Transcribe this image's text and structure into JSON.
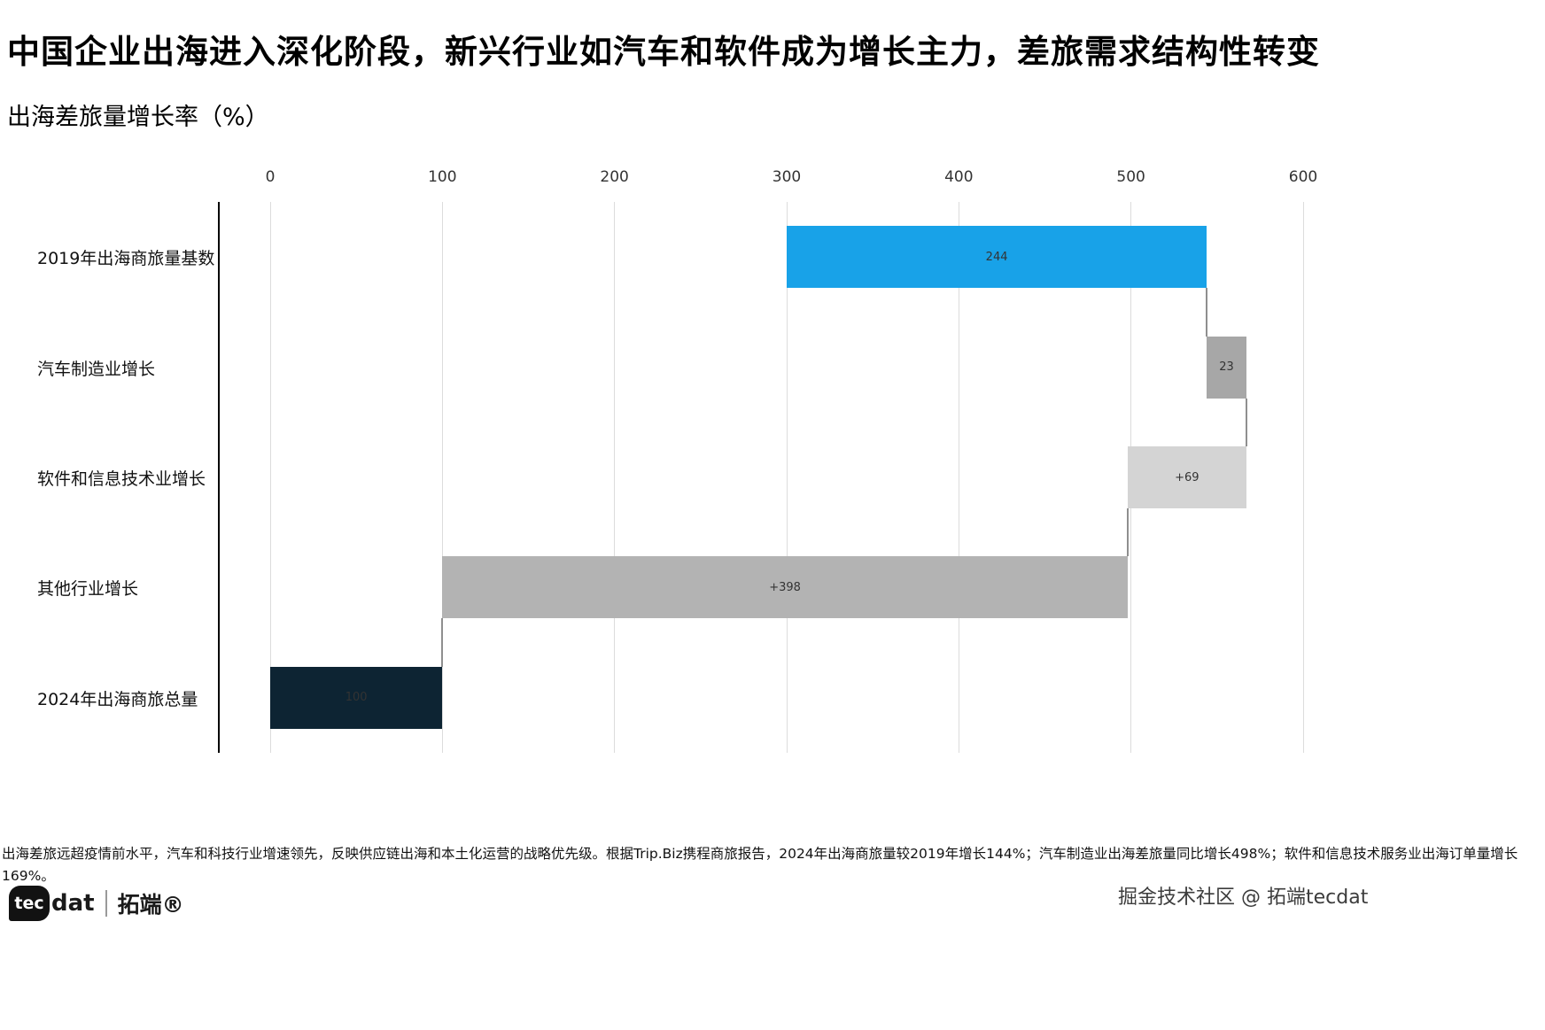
{
  "header": {
    "title": "中国企业出海进入深化阶段，新兴行业如汽车和软件成为增长主力，差旅需求结构性转变",
    "subtitle": "出海差旅量增长率（%）"
  },
  "chart_data": {
    "type": "bar",
    "variant": "horizontal-waterfall",
    "title": "中国企业出海进入深化阶段，新兴行业如汽车和软件成为增长主力，差旅需求结构性转变",
    "subtitle": "出海差旅量增长率（%）",
    "xlabel": "",
    "ylabel": "",
    "xlim": [
      0,
      600
    ],
    "xticks": [
      0,
      100,
      200,
      300,
      400,
      500,
      600
    ],
    "grid": true,
    "legend": "none",
    "categories": [
      "2019年出海商旅量基数",
      "汽车制造业增长",
      "软件和信息技术业增长",
      "其他行业增长",
      "2024年出海商旅总量"
    ],
    "bars": [
      {
        "category": "2019年出海商旅量基数",
        "value": 244,
        "start": 300,
        "end": 544,
        "label": "244",
        "color": "#18a2e8",
        "label_color": "#333333"
      },
      {
        "category": "汽车制造业增长",
        "value": 23,
        "start": 544,
        "end": 567,
        "label": "23",
        "color": "#a7a7a7",
        "label_color": "#333333"
      },
      {
        "category": "软件和信息技术业增长",
        "value": 69,
        "start": 498,
        "end": 567,
        "label": "+69",
        "color": "#d4d4d4",
        "label_color": "#333333"
      },
      {
        "category": "其他行业增长",
        "value": 398,
        "start": 100,
        "end": 498,
        "label": "+398",
        "color": "#b3b3b3",
        "label_color": "#333333"
      },
      {
        "category": "2024年出海商旅总量",
        "value": 100,
        "start": 0,
        "end": 100,
        "label": "100",
        "color": "#0d2433",
        "label_color": "#333333"
      }
    ],
    "connectors": [
      {
        "value": 544
      },
      {
        "value": 567
      },
      {
        "value": 498
      },
      {
        "value": 100
      }
    ],
    "colors": {
      "highlight_blue": "#18a2e8",
      "gray_dark": "#a7a7a7",
      "gray_light": "#d4d4d4",
      "gray_medium": "#b3b3b3",
      "navy": "#0d2433",
      "gridline": "#dcdcdc",
      "axis": "#000000"
    }
  },
  "footer": {
    "note_line1": "出海差旅远超疫情前水平，汽车和科技行业增速领先，反映供应链出海和本土化运营的战略优先级。根据Trip.Biz携程商旅报告，2024年出海商旅量较2019年增长144%；汽车制造业出海差旅量同比增长498%；软件和信息技术服务业出海订单量增长",
    "note_line2": "169%。",
    "logo": {
      "bubble_text": "tec",
      "name_rest": "dat",
      "brand_cn": "拓端®"
    },
    "watermark": "掘金技术社区 @ 拓端tecdat"
  }
}
